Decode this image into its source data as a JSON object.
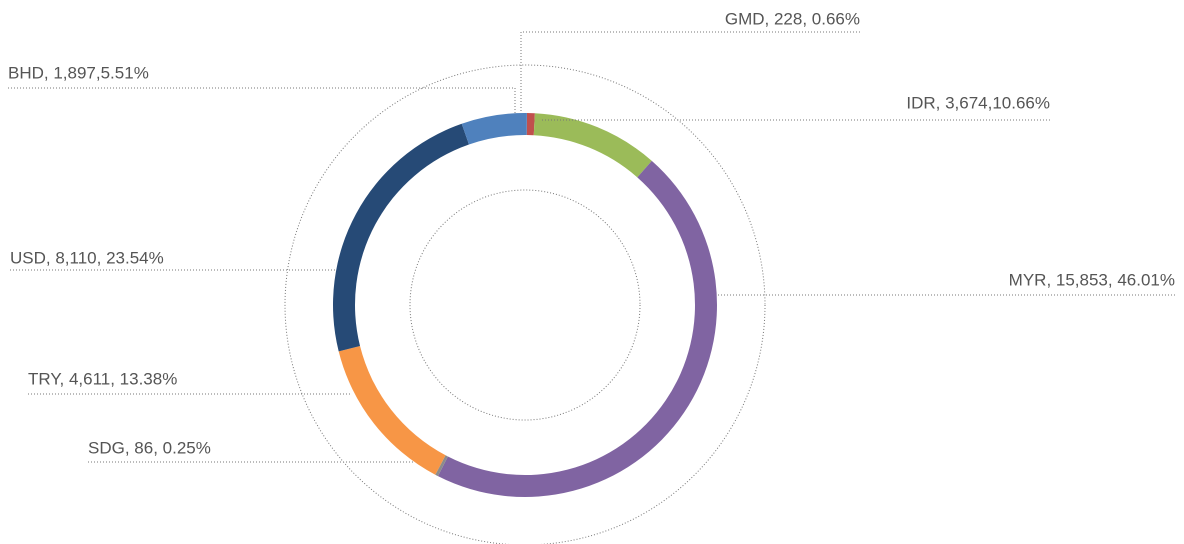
{
  "chart_data": {
    "type": "donut",
    "labels": [
      "GMD, 228, 0.66%",
      "IDR, 3,674,10.66%",
      "MYR, 15,853, 46.01%",
      "SDG, 86, 0.25%",
      "TRY, 4,611, 13.38%",
      "USD, 8,110, 23.54%",
      "BHD, 1,897,5.51%"
    ],
    "values": [
      228,
      3674,
      15853,
      86,
      4611,
      8110,
      1897
    ],
    "colors": [
      "#c0504d",
      "#9bbb59",
      "#8064a2",
      "#8c8c8c",
      "#f79646",
      "#264a76",
      "#4f81bd"
    ]
  }
}
